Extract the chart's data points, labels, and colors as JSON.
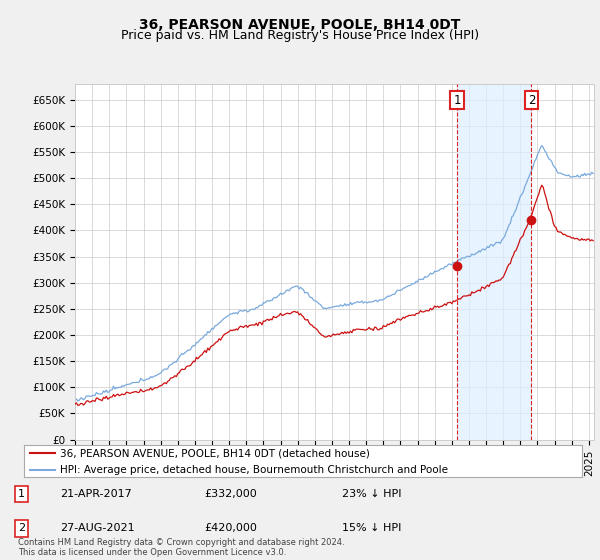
{
  "title": "36, PEARSON AVENUE, POOLE, BH14 0DT",
  "subtitle": "Price paid vs. HM Land Registry's House Price Index (HPI)",
  "ylabel_ticks": [
    "£0",
    "£50K",
    "£100K",
    "£150K",
    "£200K",
    "£250K",
    "£300K",
    "£350K",
    "£400K",
    "£450K",
    "£500K",
    "£550K",
    "£600K",
    "£650K"
  ],
  "ylim": [
    0,
    680000
  ],
  "xlim_start": 1995.0,
  "xlim_end": 2025.3,
  "background_color": "#f0f0f0",
  "plot_background": "#ffffff",
  "grid_color": "#cccccc",
  "hpi_color": "#7aaadd",
  "price_color": "#cc1111",
  "dashed_color": "#dd2222",
  "fill_color": "#ddeeff",
  "marker1_date": 2017.31,
  "marker2_date": 2021.65,
  "marker1_price": 332000,
  "marker2_price": 420000,
  "legend_line1": "36, PEARSON AVENUE, POOLE, BH14 0DT (detached house)",
  "legend_line2": "HPI: Average price, detached house, Bournemouth Christchurch and Poole",
  "annotation1_date": "21-APR-2017",
  "annotation1_price": "£332,000",
  "annotation1_hpi": "23% ↓ HPI",
  "annotation2_date": "27-AUG-2021",
  "annotation2_price": "£420,000",
  "annotation2_hpi": "15% ↓ HPI",
  "footnote": "Contains HM Land Registry data © Crown copyright and database right 2024.\nThis data is licensed under the Open Government Licence v3.0.",
  "title_fontsize": 10,
  "subtitle_fontsize": 9,
  "tick_fontsize": 7.5,
  "legend_fontsize": 7.5,
  "ann_fontsize": 8
}
